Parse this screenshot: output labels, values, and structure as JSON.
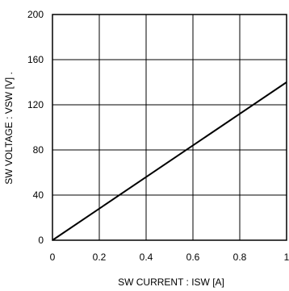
{
  "chart_data": {
    "type": "line",
    "title": "",
    "xlabel": "SW CURRENT : ISW [A]",
    "ylabel": "SW VOLTAGE : VSW [V] .",
    "xlim": [
      0,
      1
    ],
    "ylim": [
      0,
      200
    ],
    "x_ticks": [
      "0",
      "0.2",
      "0.4",
      "0.6",
      "0.8",
      "1"
    ],
    "y_ticks": [
      "0",
      "40",
      "80",
      "120",
      "160",
      "200"
    ],
    "grid": true,
    "legend": "none",
    "series": [
      {
        "x": [
          0,
          1
        ],
        "y": [
          0,
          140
        ]
      }
    ],
    "colors": {
      "line": "#000000",
      "grid": "#000000",
      "background": "#ffffff"
    }
  }
}
